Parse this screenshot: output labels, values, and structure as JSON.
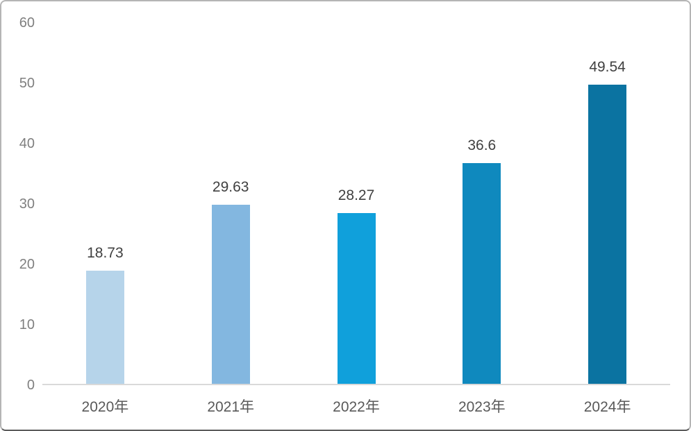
{
  "chart_data": {
    "type": "bar",
    "title": "",
    "xlabel": "",
    "ylabel": "",
    "categories": [
      "2020年",
      "2021年",
      "2022年",
      "2023年",
      "2024年"
    ],
    "values": [
      18.73,
      29.63,
      28.27,
      36.6,
      49.54
    ],
    "value_labels": [
      "18.73",
      "29.63",
      "28.27",
      "36.6",
      "49.54"
    ],
    "bar_colors": [
      "#B6D4EA",
      "#83B7E0",
      "#10A0DB",
      "#0F89BE",
      "#0B73A1"
    ],
    "ylim": [
      0,
      60
    ],
    "y_ticks": [
      0,
      10,
      20,
      30,
      40,
      50,
      60
    ],
    "y_tick_labels": [
      "0",
      "10",
      "20",
      "30",
      "40",
      "50",
      "60"
    ],
    "grid": false,
    "legend": "none",
    "axis_line_color": "#D9D9D9",
    "y_tick_color": "#7f7f7f",
    "x_label_color": "#595959",
    "value_label_color": "#404040",
    "background_color": "#ffffff"
  },
  "layout_note": "single-series column chart, no gridlines, values labeled above bars"
}
